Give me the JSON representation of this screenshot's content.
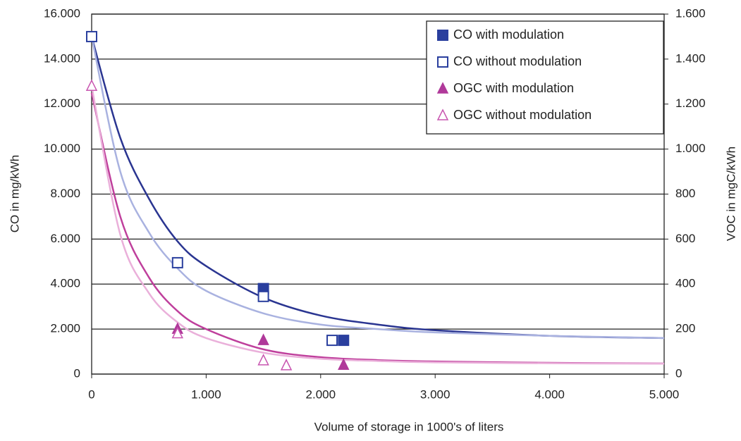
{
  "chart_data": {
    "type": "scatter",
    "xlabel": "Volume of storage in 1000's of  liters",
    "ylabel": "CO in mg/kWh",
    "y2label": "VOC in mgC/kWh",
    "xlim": [
      0,
      5000
    ],
    "xticks": [
      0,
      {
        "value": 1000,
        "label": "1.000"
      },
      {
        "value": 2000,
        "label": "2.000"
      },
      {
        "value": 3000,
        "label": "3.000"
      },
      {
        "value": 4000,
        "label": "4.000"
      },
      {
        "value": 5000,
        "label": "5.000"
      }
    ],
    "ylim": [
      0,
      16000
    ],
    "yticks": [
      0,
      {
        "value": 2000,
        "label": "2.000"
      },
      {
        "value": 4000,
        "label": "4.000"
      },
      {
        "value": 6000,
        "label": "6.000"
      },
      {
        "value": 8000,
        "label": "8.000"
      },
      {
        "value": 10000,
        "label": "10.000"
      },
      {
        "value": 12000,
        "label": "12.000"
      },
      {
        "value": 14000,
        "label": "14.000"
      },
      {
        "value": 16000,
        "label": "16.000"
      }
    ],
    "y2lim": [
      0,
      1600
    ],
    "y2ticks": [
      0,
      200,
      400,
      600,
      800,
      {
        "value": 1000,
        "label": "1.000"
      },
      {
        "value": 1200,
        "label": "1.200"
      },
      {
        "value": 1400,
        "label": "1.400"
      },
      {
        "value": 1600,
        "label": "1.600"
      }
    ],
    "grid": true,
    "legend": "upper right",
    "series": [
      {
        "name": "CO with modulation",
        "color": "#2a3f9e",
        "marker": "square",
        "filled": true,
        "x": [
          1500,
          2200
        ],
        "values": [
          3800,
          1500
        ]
      },
      {
        "name": "CO without modulation",
        "color": "#2a3f9e",
        "marker": "square",
        "filled": false,
        "x": [
          0,
          750,
          1500,
          2100
        ],
        "values": [
          15000,
          4950,
          3450,
          1500
        ]
      },
      {
        "name": "OGC with modulation",
        "color": "#b0399a",
        "marker": "triangle",
        "filled": true,
        "axis": "y2",
        "x": [
          750,
          1500,
          2200
        ],
        "values": [
          200,
          150,
          40
        ]
      },
      {
        "name": "OGC without modulation",
        "color": "#c855b0",
        "marker": "triangle",
        "filled": false,
        "axis": "y2",
        "x": [
          0,
          750,
          1500,
          1700
        ],
        "values": [
          1280,
          180,
          60,
          38
        ]
      }
    ],
    "trendlines": [
      {
        "color": "#2a3591",
        "x": [
          0,
          250,
          500,
          750,
          1000,
          1500,
          2000,
          2500,
          3000,
          4000,
          5000
        ],
        "values": [
          15000,
          10500,
          7800,
          5900,
          4800,
          3400,
          2600,
          2200,
          1950,
          1700,
          1600
        ]
      },
      {
        "color": "#a9b2e0",
        "x": [
          0,
          250,
          500,
          750,
          1000,
          1500,
          2000,
          2500,
          3000,
          4000,
          5000
        ],
        "values": [
          15000,
          9000,
          6300,
          4700,
          3700,
          2700,
          2200,
          2000,
          1850,
          1700,
          1600
        ]
      },
      {
        "color": "#bf3f9c",
        "axis": "y2",
        "x": [
          0,
          250,
          500,
          750,
          1000,
          1500,
          2000,
          2500,
          3000,
          4000,
          5000
        ],
        "values": [
          1250,
          700,
          430,
          280,
          200,
          110,
          75,
          62,
          56,
          50,
          47
        ]
      },
      {
        "color": "#eab0da",
        "axis": "y2",
        "x": [
          0,
          250,
          500,
          750,
          1000,
          1500,
          2000,
          2500,
          3000,
          4000,
          5000
        ],
        "values": [
          1280,
          620,
          360,
          230,
          160,
          95,
          68,
          58,
          52,
          48,
          46
        ]
      }
    ]
  }
}
